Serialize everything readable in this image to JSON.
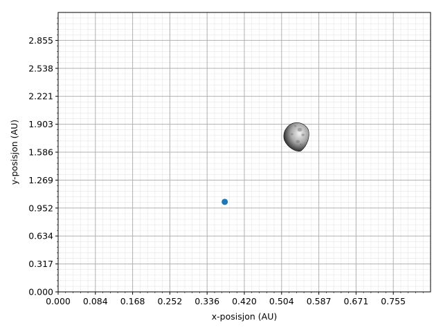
{
  "chart_data": {
    "type": "scatter",
    "title": "",
    "xlabel": "x-posisjon (AU)",
    "ylabel": "y-posisjon (AU)",
    "xlim": [
      0,
      0.8405
    ],
    "ylim": [
      0,
      3.1715
    ],
    "xticks": [
      "0.000",
      "0.084",
      "0.168",
      "0.252",
      "0.336",
      "0.420",
      "0.504",
      "0.587",
      "0.671",
      "0.755"
    ],
    "yticks": [
      "0.000",
      "0.317",
      "0.634",
      "0.952",
      "1.269",
      "1.586",
      "1.903",
      "2.221",
      "2.538",
      "2.855"
    ],
    "grid": true,
    "minor_grid": true,
    "points": [
      {
        "x": 0.376,
        "y": 1.022,
        "color": "#1f77b4",
        "marker": "circle"
      }
    ],
    "images": [
      {
        "icon": "asteroid-icon",
        "x": 0.538,
        "y": 1.765,
        "width_data": 0.058,
        "height_data": 0.338
      }
    ]
  }
}
